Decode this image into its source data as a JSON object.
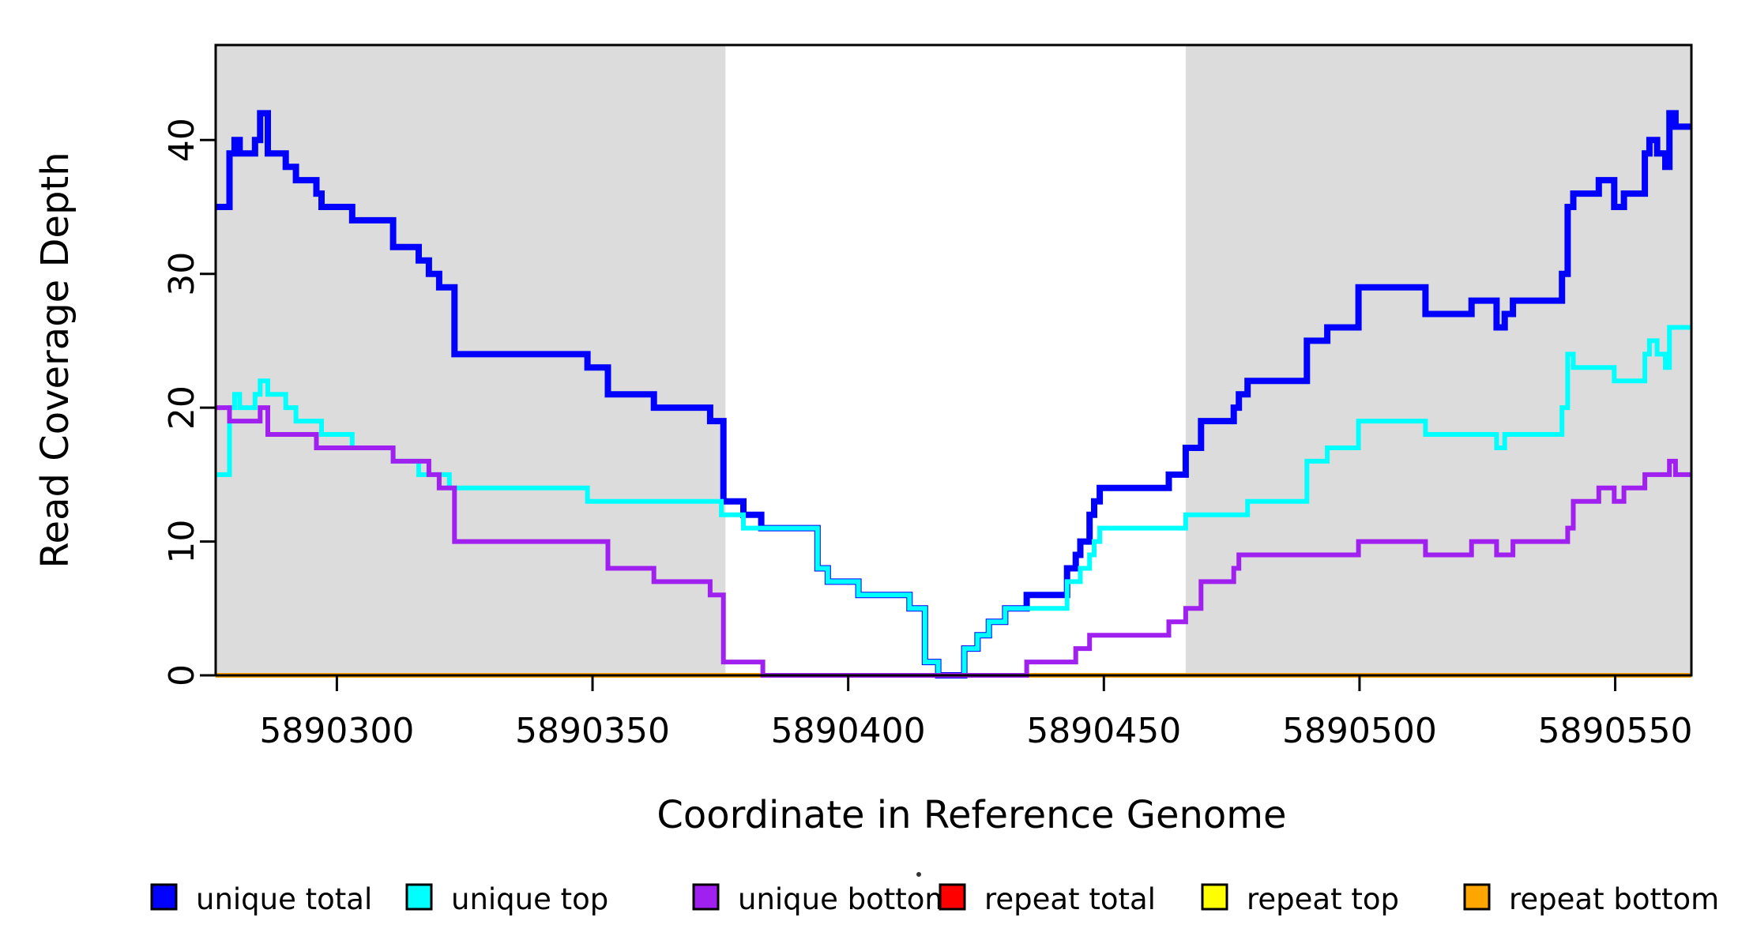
{
  "chart_data": {
    "type": "line",
    "subtype": "step",
    "title": "",
    "xlabel": "Coordinate in Reference Genome",
    "ylabel": "Read Coverage Depth",
    "xlim": [
      5890276.3,
      5890564.9
    ],
    "ylim": [
      0,
      47.1
    ],
    "grid": false,
    "background": "#ffffff",
    "plot_border_color": "#000000",
    "legend_position": "bottom-horizontal",
    "x_ticks": [
      {
        "value": 5890300,
        "label": "5890300"
      },
      {
        "value": 5890350,
        "label": "5890350"
      },
      {
        "value": 5890400,
        "label": "5890400"
      },
      {
        "value": 5890450,
        "label": "5890450"
      },
      {
        "value": 5890500,
        "label": "5890500"
      },
      {
        "value": 5890550,
        "label": "5890550"
      }
    ],
    "y_ticks": [
      {
        "value": 0,
        "label": "0"
      },
      {
        "value": 10,
        "label": "10"
      },
      {
        "value": 20,
        "label": "20"
      },
      {
        "value": 30,
        "label": "30"
      },
      {
        "value": 40,
        "label": "40"
      }
    ],
    "shaded_regions": [
      {
        "x0": 5890276.3,
        "x1": 5890376.0,
        "color": "#DCDCDC"
      },
      {
        "x0": 5890466.0,
        "x1": 5890564.9,
        "color": "#DCDCDC"
      }
    ],
    "series": [
      {
        "name": "repeat total",
        "color": "#FF0000",
        "width": 6,
        "points": [
          [
            5890276.3,
            0
          ]
        ]
      },
      {
        "name": "repeat top",
        "color": "#FFFF00",
        "width": 6,
        "points": [
          [
            5890276.3,
            0
          ]
        ]
      },
      {
        "name": "repeat bottom",
        "color": "#FFA500",
        "width": 6,
        "points": [
          [
            5890276.3,
            0
          ]
        ]
      },
      {
        "name": "unique total",
        "color": "#0000FF",
        "width": 8,
        "points": [
          [
            5890276.3,
            35
          ],
          [
            5890279,
            39
          ],
          [
            5890280,
            40
          ],
          [
            5890281,
            39
          ],
          [
            5890284,
            40
          ],
          [
            5890285,
            42
          ],
          [
            5890286.5,
            39
          ],
          [
            5890290,
            38
          ],
          [
            5890292,
            37
          ],
          [
            5890296,
            36
          ],
          [
            5890297,
            35
          ],
          [
            5890303,
            34
          ],
          [
            5890311,
            32
          ],
          [
            5890316,
            31
          ],
          [
            5890318,
            30
          ],
          [
            5890320,
            29
          ],
          [
            5890323,
            24
          ],
          [
            5890349,
            23
          ],
          [
            5890353,
            21
          ],
          [
            5890362,
            20
          ],
          [
            5890373,
            19
          ],
          [
            5890375.6,
            13
          ],
          [
            5890379.5,
            12
          ],
          [
            5890383,
            11
          ],
          [
            5890394,
            8
          ],
          [
            5890396,
            7
          ],
          [
            5890402,
            6
          ],
          [
            5890412,
            5
          ],
          [
            5890415,
            1
          ],
          [
            5890417.6,
            0
          ],
          [
            5890422.7,
            2
          ],
          [
            5890425.3,
            3
          ],
          [
            5890427.5,
            4
          ],
          [
            5890430.7,
            5
          ],
          [
            5890434.9,
            6
          ],
          [
            5890442.8,
            8
          ],
          [
            5890444.5,
            9
          ],
          [
            5890445.4,
            10
          ],
          [
            5890447.2,
            12
          ],
          [
            5890448.1,
            13
          ],
          [
            5890449.2,
            14
          ],
          [
            5890462.7,
            15
          ],
          [
            5890466,
            17
          ],
          [
            5890469,
            19
          ],
          [
            5890475.4,
            20
          ],
          [
            5890476.4,
            21
          ],
          [
            5890478.1,
            22
          ],
          [
            5890489.7,
            25
          ],
          [
            5890493.7,
            26
          ],
          [
            5890499.8,
            29
          ],
          [
            5890512.9,
            27
          ],
          [
            5890521.9,
            28
          ],
          [
            5890526.8,
            26
          ],
          [
            5890528.4,
            27
          ],
          [
            5890530,
            28
          ],
          [
            5890539.6,
            30
          ],
          [
            5890540.7,
            35
          ],
          [
            5890541.8,
            36
          ],
          [
            5890546.8,
            37
          ],
          [
            5890549.8,
            35
          ],
          [
            5890551.7,
            36
          ],
          [
            5890555.8,
            39
          ],
          [
            5890556.7,
            40
          ],
          [
            5890558.2,
            39
          ],
          [
            5890559.8,
            38
          ],
          [
            5890560.6,
            42
          ],
          [
            5890561.8,
            41
          ]
        ]
      },
      {
        "name": "unique top",
        "color": "#00FFFF",
        "width": 6,
        "points": [
          [
            5890276.3,
            15
          ],
          [
            5890279,
            20
          ],
          [
            5890280,
            21
          ],
          [
            5890281,
            20
          ],
          [
            5890284,
            21
          ],
          [
            5890285,
            22
          ],
          [
            5890286.5,
            21
          ],
          [
            5890290,
            20
          ],
          [
            5890292,
            19
          ],
          [
            5890297,
            18
          ],
          [
            5890303,
            17
          ],
          [
            5890311,
            16
          ],
          [
            5890316,
            15
          ],
          [
            5890322,
            14
          ],
          [
            5890349,
            13
          ],
          [
            5890375.2,
            12
          ],
          [
            5890379.5,
            11
          ],
          [
            5890394,
            8
          ],
          [
            5890396,
            7
          ],
          [
            5890402,
            6
          ],
          [
            5890412,
            5
          ],
          [
            5890415,
            1
          ],
          [
            5890417.6,
            0
          ],
          [
            5890422.7,
            2
          ],
          [
            5890425.3,
            3
          ],
          [
            5890427.5,
            4
          ],
          [
            5890430.7,
            5
          ],
          [
            5890442.8,
            7
          ],
          [
            5890445.4,
            8
          ],
          [
            5890447.2,
            9
          ],
          [
            5890448.1,
            10
          ],
          [
            5890449.2,
            11
          ],
          [
            5890466,
            12
          ],
          [
            5890478.1,
            13
          ],
          [
            5890489.7,
            16
          ],
          [
            5890493.7,
            17
          ],
          [
            5890499.8,
            19
          ],
          [
            5890512.9,
            18
          ],
          [
            5890526.8,
            17
          ],
          [
            5890528.4,
            18
          ],
          [
            5890539.6,
            20
          ],
          [
            5890540.7,
            24
          ],
          [
            5890541.8,
            23
          ],
          [
            5890549.8,
            22
          ],
          [
            5890555.8,
            24
          ],
          [
            5890556.7,
            25
          ],
          [
            5890558.2,
            24
          ],
          [
            5890559.8,
            23
          ],
          [
            5890560.6,
            26
          ]
        ]
      },
      {
        "name": "unique bottom",
        "color": "#A020F0",
        "width": 6,
        "points": [
          [
            5890276.3,
            20
          ],
          [
            5890279,
            19
          ],
          [
            5890285,
            20
          ],
          [
            5890286.5,
            18
          ],
          [
            5890296,
            17
          ],
          [
            5890311,
            16
          ],
          [
            5890318,
            15
          ],
          [
            5890320,
            14
          ],
          [
            5890323,
            10
          ],
          [
            5890353,
            8
          ],
          [
            5890362,
            7
          ],
          [
            5890373,
            6
          ],
          [
            5890375.6,
            1
          ],
          [
            5890383.3,
            0
          ],
          [
            5890434.9,
            1
          ],
          [
            5890444.5,
            2
          ],
          [
            5890447.2,
            3
          ],
          [
            5890462.7,
            4
          ],
          [
            5890466,
            5
          ],
          [
            5890469,
            7
          ],
          [
            5890475.4,
            8
          ],
          [
            5890476.4,
            9
          ],
          [
            5890499.8,
            10
          ],
          [
            5890512.9,
            9
          ],
          [
            5890521.9,
            10
          ],
          [
            5890526.8,
            9
          ],
          [
            5890530,
            10
          ],
          [
            5890540.7,
            11
          ],
          [
            5890541.8,
            13
          ],
          [
            5890546.8,
            14
          ],
          [
            5890549.8,
            13
          ],
          [
            5890551.7,
            14
          ],
          [
            5890555.8,
            15
          ],
          [
            5890560.6,
            16
          ],
          [
            5890561.8,
            15
          ]
        ]
      }
    ],
    "legend": [
      {
        "label": "unique total",
        "color": "#0000FF"
      },
      {
        "label": "unique top",
        "color": "#00FFFF"
      },
      {
        "label": "unique bottom",
        "color": "#A020F0"
      },
      {
        "label": "repeat total",
        "color": "#FF0000"
      },
      {
        "label": "repeat top",
        "color": "#FFFF00"
      },
      {
        "label": "repeat bottom",
        "color": "#FFA500"
      }
    ]
  }
}
